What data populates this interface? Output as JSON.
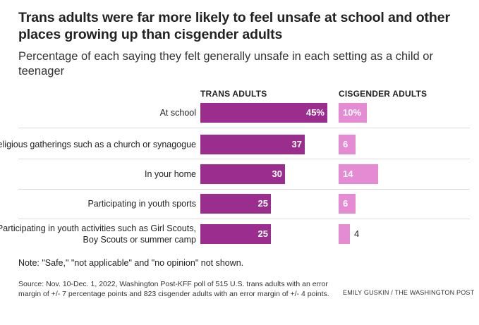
{
  "title": "Trans adults were far more likely to feel unsafe at school and other places growing up than cisgender adults",
  "subtitle": "Percentage of each saying they felt generally unsafe in each setting as a child or teenager",
  "note": "Note: \"Safe,\" \"not applicable\" and \"no opinion\" not shown.",
  "source": "Source: Nov. 10-Dec. 1, 2022, Washington Post-KFF poll of 515 U.S. trans adults with an error margin of +/- 7 percentage points and 823 cisgender adults with an error margin of +/- 4 points.",
  "credit": "EMILY GUSKIN / THE WASHINGTON POST",
  "colors": {
    "trans": "#9b2d8e",
    "cis": "#e48bd4"
  },
  "chart_data": {
    "type": "bar",
    "orientation": "horizontal",
    "layout": "paired-columns",
    "categories": [
      "At school",
      "In religious gatherings such as a church or synagogue",
      "In your home",
      "Participating in youth sports",
      "Participating in youth activities such as Girl Scouts, Boy Scouts or summer camp"
    ],
    "series": [
      {
        "name": "TRANS ADULTS",
        "values": [
          45,
          37,
          30,
          25,
          25
        ],
        "labels": [
          "45%",
          "37",
          "30",
          "25",
          "25"
        ]
      },
      {
        "name": "CISGENDER ADULTS",
        "values": [
          10,
          6,
          14,
          6,
          4
        ],
        "labels": [
          "10%",
          "6",
          "14",
          "6",
          "4"
        ]
      }
    ],
    "unit": "%",
    "xlim": [
      0,
      45
    ],
    "grid": false
  }
}
